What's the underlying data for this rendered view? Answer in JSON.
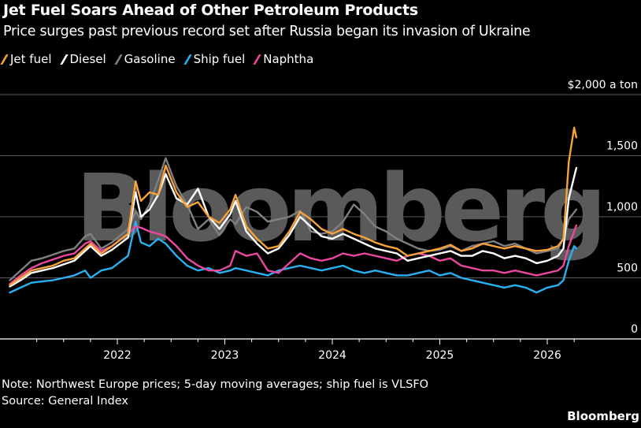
{
  "header": {
    "title": "Jet Fuel Soars Ahead of Other Petroleum Products",
    "subtitle": "Price surges past previous record set after Russia began its invasion of Ukraine"
  },
  "footer": {
    "note": "Note: Northwest Europe prices; 5-day moving averages; ship fuel is VLSFO",
    "source": "Source: General Index",
    "brand": "Bloomberg"
  },
  "watermark": "Bloomberg",
  "chart_data": {
    "type": "line",
    "title": "Jet Fuel Soars Ahead of Other Petroleum Products",
    "subtitle": "Price surges past previous record set after Russia began its invasion of Ukraine",
    "xlabel": "",
    "ylabel": "$ a ton",
    "y_unit_label": "$2,000 a ton",
    "xlim": [
      2021.0,
      2026.4
    ],
    "ylim": [
      0,
      2000
    ],
    "y_ticks": [
      0,
      500,
      1000,
      1500,
      2000
    ],
    "y_tick_labels": [
      "0",
      "500",
      "1,000",
      "1,500",
      "$2,000 a ton"
    ],
    "x_ticks": [
      2022,
      2023,
      2024,
      2025,
      2026
    ],
    "x_tick_labels": [
      "2022",
      "2023",
      "2024",
      "2025",
      "2026"
    ],
    "grid": true,
    "legend_position": "top-left",
    "series": [
      {
        "name": "Jet fuel",
        "color": "#f7a23a",
        "points": [
          [
            2021.0,
            440
          ],
          [
            2021.1,
            500
          ],
          [
            2021.2,
            560
          ],
          [
            2021.3,
            580
          ],
          [
            2021.4,
            600
          ],
          [
            2021.5,
            640
          ],
          [
            2021.6,
            660
          ],
          [
            2021.7,
            740
          ],
          [
            2021.75,
            780
          ],
          [
            2021.85,
            700
          ],
          [
            2021.95,
            760
          ],
          [
            2022.1,
            860
          ],
          [
            2022.17,
            1290
          ],
          [
            2022.22,
            1130
          ],
          [
            2022.3,
            1200
          ],
          [
            2022.38,
            1180
          ],
          [
            2022.45,
            1420
          ],
          [
            2022.55,
            1200
          ],
          [
            2022.65,
            1080
          ],
          [
            2022.75,
            1120
          ],
          [
            2022.85,
            1000
          ],
          [
            2022.95,
            950
          ],
          [
            2023.05,
            1060
          ],
          [
            2023.1,
            1180
          ],
          [
            2023.2,
            920
          ],
          [
            2023.3,
            820
          ],
          [
            2023.4,
            740
          ],
          [
            2023.5,
            760
          ],
          [
            2023.6,
            880
          ],
          [
            2023.7,
            1040
          ],
          [
            2023.8,
            980
          ],
          [
            2023.9,
            900
          ],
          [
            2024.0,
            860
          ],
          [
            2024.1,
            900
          ],
          [
            2024.2,
            860
          ],
          [
            2024.3,
            830
          ],
          [
            2024.4,
            790
          ],
          [
            2024.5,
            760
          ],
          [
            2024.6,
            740
          ],
          [
            2024.7,
            680
          ],
          [
            2024.8,
            700
          ],
          [
            2024.9,
            720
          ],
          [
            2025.0,
            740
          ],
          [
            2025.1,
            770
          ],
          [
            2025.2,
            720
          ],
          [
            2025.3,
            740
          ],
          [
            2025.4,
            780
          ],
          [
            2025.5,
            760
          ],
          [
            2025.6,
            740
          ],
          [
            2025.7,
            760
          ],
          [
            2025.8,
            740
          ],
          [
            2025.9,
            720
          ],
          [
            2026.0,
            730
          ],
          [
            2026.1,
            760
          ],
          [
            2026.15,
            820
          ],
          [
            2026.2,
            1450
          ],
          [
            2026.25,
            1730
          ],
          [
            2026.27,
            1650
          ]
        ]
      },
      {
        "name": "Diesel",
        "color": "#ffffff",
        "points": [
          [
            2021.0,
            430
          ],
          [
            2021.1,
            480
          ],
          [
            2021.2,
            540
          ],
          [
            2021.3,
            560
          ],
          [
            2021.4,
            580
          ],
          [
            2021.5,
            610
          ],
          [
            2021.6,
            640
          ],
          [
            2021.7,
            720
          ],
          [
            2021.75,
            760
          ],
          [
            2021.85,
            680
          ],
          [
            2021.95,
            730
          ],
          [
            2022.1,
            830
          ],
          [
            2022.17,
            1200
          ],
          [
            2022.22,
            1000
          ],
          [
            2022.3,
            1060
          ],
          [
            2022.38,
            1180
          ],
          [
            2022.45,
            1350
          ],
          [
            2022.55,
            1150
          ],
          [
            2022.65,
            1100
          ],
          [
            2022.75,
            1230
          ],
          [
            2022.85,
            1000
          ],
          [
            2022.95,
            900
          ],
          [
            2023.05,
            1020
          ],
          [
            2023.1,
            1130
          ],
          [
            2023.2,
            880
          ],
          [
            2023.3,
            780
          ],
          [
            2023.4,
            700
          ],
          [
            2023.5,
            740
          ],
          [
            2023.6,
            850
          ],
          [
            2023.7,
            1000
          ],
          [
            2023.8,
            920
          ],
          [
            2023.9,
            840
          ],
          [
            2024.0,
            820
          ],
          [
            2024.1,
            860
          ],
          [
            2024.2,
            820
          ],
          [
            2024.3,
            780
          ],
          [
            2024.4,
            740
          ],
          [
            2024.5,
            720
          ],
          [
            2024.6,
            700
          ],
          [
            2024.7,
            640
          ],
          [
            2024.8,
            660
          ],
          [
            2024.9,
            680
          ],
          [
            2025.0,
            700
          ],
          [
            2025.1,
            720
          ],
          [
            2025.2,
            680
          ],
          [
            2025.3,
            680
          ],
          [
            2025.4,
            720
          ],
          [
            2025.5,
            700
          ],
          [
            2025.6,
            660
          ],
          [
            2025.7,
            680
          ],
          [
            2025.8,
            660
          ],
          [
            2025.9,
            620
          ],
          [
            2026.0,
            640
          ],
          [
            2026.1,
            680
          ],
          [
            2026.15,
            740
          ],
          [
            2026.2,
            1150
          ],
          [
            2026.27,
            1400
          ]
        ]
      },
      {
        "name": "Gasoline",
        "color": "#808080",
        "points": [
          [
            2021.0,
            480
          ],
          [
            2021.1,
            560
          ],
          [
            2021.2,
            640
          ],
          [
            2021.3,
            660
          ],
          [
            2021.4,
            690
          ],
          [
            2021.5,
            720
          ],
          [
            2021.6,
            740
          ],
          [
            2021.7,
            840
          ],
          [
            2021.75,
            860
          ],
          [
            2021.85,
            740
          ],
          [
            2021.95,
            790
          ],
          [
            2022.1,
            900
          ],
          [
            2022.17,
            1040
          ],
          [
            2022.22,
            980
          ],
          [
            2022.3,
            1100
          ],
          [
            2022.38,
            1300
          ],
          [
            2022.45,
            1480
          ],
          [
            2022.55,
            1250
          ],
          [
            2022.65,
            1100
          ],
          [
            2022.75,
            900
          ],
          [
            2022.85,
            980
          ],
          [
            2022.95,
            850
          ],
          [
            2023.05,
            980
          ],
          [
            2023.1,
            940
          ],
          [
            2023.2,
            1080
          ],
          [
            2023.3,
            1040
          ],
          [
            2023.4,
            960
          ],
          [
            2023.5,
            980
          ],
          [
            2023.6,
            1000
          ],
          [
            2023.7,
            1050
          ],
          [
            2023.8,
            880
          ],
          [
            2023.9,
            860
          ],
          [
            2024.0,
            880
          ],
          [
            2024.1,
            960
          ],
          [
            2024.2,
            1100
          ],
          [
            2024.3,
            1020
          ],
          [
            2024.4,
            920
          ],
          [
            2024.5,
            880
          ],
          [
            2024.6,
            820
          ],
          [
            2024.7,
            780
          ],
          [
            2024.8,
            740
          ],
          [
            2024.9,
            720
          ],
          [
            2025.0,
            730
          ],
          [
            2025.1,
            760
          ],
          [
            2025.2,
            720
          ],
          [
            2025.3,
            760
          ],
          [
            2025.4,
            780
          ],
          [
            2025.5,
            800
          ],
          [
            2025.6,
            760
          ],
          [
            2025.7,
            780
          ],
          [
            2025.8,
            740
          ],
          [
            2025.9,
            700
          ],
          [
            2026.0,
            720
          ],
          [
            2026.1,
            740
          ],
          [
            2026.15,
            820
          ],
          [
            2026.2,
            980
          ],
          [
            2026.27,
            1060
          ]
        ]
      },
      {
        "name": "Ship fuel",
        "color": "#2ab0f0",
        "points": [
          [
            2021.0,
            380
          ],
          [
            2021.1,
            420
          ],
          [
            2021.2,
            460
          ],
          [
            2021.3,
            470
          ],
          [
            2021.4,
            480
          ],
          [
            2021.5,
            500
          ],
          [
            2021.6,
            520
          ],
          [
            2021.7,
            560
          ],
          [
            2021.75,
            500
          ],
          [
            2021.85,
            560
          ],
          [
            2021.95,
            580
          ],
          [
            2022.1,
            680
          ],
          [
            2022.17,
            960
          ],
          [
            2022.22,
            790
          ],
          [
            2022.3,
            760
          ],
          [
            2022.38,
            820
          ],
          [
            2022.45,
            780
          ],
          [
            2022.55,
            680
          ],
          [
            2022.65,
            600
          ],
          [
            2022.75,
            560
          ],
          [
            2022.85,
            580
          ],
          [
            2022.95,
            540
          ],
          [
            2023.05,
            560
          ],
          [
            2023.1,
            580
          ],
          [
            2023.2,
            560
          ],
          [
            2023.3,
            540
          ],
          [
            2023.4,
            520
          ],
          [
            2023.5,
            560
          ],
          [
            2023.6,
            580
          ],
          [
            2023.7,
            600
          ],
          [
            2023.8,
            580
          ],
          [
            2023.9,
            560
          ],
          [
            2024.0,
            580
          ],
          [
            2024.1,
            600
          ],
          [
            2024.2,
            560
          ],
          [
            2024.3,
            540
          ],
          [
            2024.4,
            560
          ],
          [
            2024.5,
            540
          ],
          [
            2024.6,
            520
          ],
          [
            2024.7,
            520
          ],
          [
            2024.8,
            540
          ],
          [
            2024.9,
            560
          ],
          [
            2025.0,
            520
          ],
          [
            2025.1,
            540
          ],
          [
            2025.2,
            500
          ],
          [
            2025.3,
            480
          ],
          [
            2025.4,
            460
          ],
          [
            2025.5,
            440
          ],
          [
            2025.6,
            420
          ],
          [
            2025.7,
            440
          ],
          [
            2025.8,
            420
          ],
          [
            2025.9,
            380
          ],
          [
            2026.0,
            420
          ],
          [
            2026.1,
            440
          ],
          [
            2026.15,
            480
          ],
          [
            2026.2,
            640
          ],
          [
            2026.25,
            760
          ],
          [
            2026.27,
            740
          ]
        ]
      },
      {
        "name": "Naphtha",
        "color": "#e8489e",
        "points": [
          [
            2021.0,
            450
          ],
          [
            2021.1,
            520
          ],
          [
            2021.2,
            580
          ],
          [
            2021.3,
            620
          ],
          [
            2021.4,
            650
          ],
          [
            2021.5,
            680
          ],
          [
            2021.6,
            700
          ],
          [
            2021.7,
            780
          ],
          [
            2021.75,
            800
          ],
          [
            2021.85,
            720
          ],
          [
            2021.95,
            760
          ],
          [
            2022.1,
            860
          ],
          [
            2022.17,
            920
          ],
          [
            2022.22,
            910
          ],
          [
            2022.3,
            880
          ],
          [
            2022.38,
            860
          ],
          [
            2022.45,
            840
          ],
          [
            2022.55,
            760
          ],
          [
            2022.65,
            660
          ],
          [
            2022.75,
            600
          ],
          [
            2022.85,
            560
          ],
          [
            2022.95,
            560
          ],
          [
            2023.05,
            600
          ],
          [
            2023.1,
            720
          ],
          [
            2023.2,
            680
          ],
          [
            2023.3,
            700
          ],
          [
            2023.4,
            560
          ],
          [
            2023.5,
            540
          ],
          [
            2023.6,
            620
          ],
          [
            2023.7,
            700
          ],
          [
            2023.8,
            660
          ],
          [
            2023.9,
            640
          ],
          [
            2024.0,
            660
          ],
          [
            2024.1,
            700
          ],
          [
            2024.2,
            680
          ],
          [
            2024.3,
            700
          ],
          [
            2024.4,
            680
          ],
          [
            2024.5,
            660
          ],
          [
            2024.6,
            640
          ],
          [
            2024.7,
            680
          ],
          [
            2024.8,
            700
          ],
          [
            2024.9,
            680
          ],
          [
            2025.0,
            640
          ],
          [
            2025.1,
            660
          ],
          [
            2025.2,
            600
          ],
          [
            2025.3,
            580
          ],
          [
            2025.4,
            560
          ],
          [
            2025.5,
            560
          ],
          [
            2025.6,
            540
          ],
          [
            2025.7,
            560
          ],
          [
            2025.8,
            540
          ],
          [
            2025.9,
            520
          ],
          [
            2026.0,
            540
          ],
          [
            2026.1,
            560
          ],
          [
            2026.15,
            600
          ],
          [
            2026.2,
            760
          ],
          [
            2026.27,
            930
          ]
        ]
      }
    ]
  }
}
